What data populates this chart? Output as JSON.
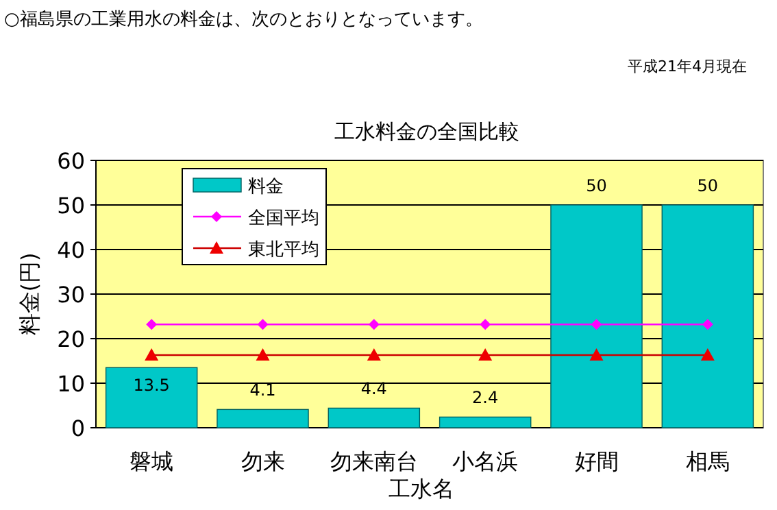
{
  "chart_data": {
    "type": "bar",
    "title": "工水料金の全国比較",
    "xlabel": "工水名",
    "ylabel": "料金(円)",
    "annotations": [
      "○福島県の工業用水の料金は、次のとおりとなっています。",
      "平成21年4月現在"
    ],
    "categories": [
      "磐城",
      "勿来",
      "勿来南台",
      "小名浜",
      "好間",
      "相馬"
    ],
    "series": [
      {
        "name": "料金",
        "color": "#00c8c8",
        "values": [
          13.5,
          4.1,
          4.4,
          2.4,
          50,
          50
        ],
        "value_labels": [
          "13.5",
          "4.1",
          "4.4",
          "2.4",
          "50",
          "50"
        ]
      },
      {
        "name": "全国平均",
        "type": "line",
        "marker": "diamond",
        "color": "#ff00ff",
        "values": [
          23.2,
          23.2,
          23.2,
          23.2,
          23.2,
          23.2
        ]
      },
      {
        "name": "東北平均",
        "type": "line",
        "marker": "triangle",
        "color": "#cc0000",
        "values": [
          16.3,
          16.3,
          16.3,
          16.3,
          16.3,
          16.3
        ]
      }
    ],
    "ylim": [
      0,
      60
    ],
    "yticks": [
      0,
      10,
      20,
      30,
      40,
      50,
      60
    ],
    "grid": "y",
    "legend": "top left"
  }
}
